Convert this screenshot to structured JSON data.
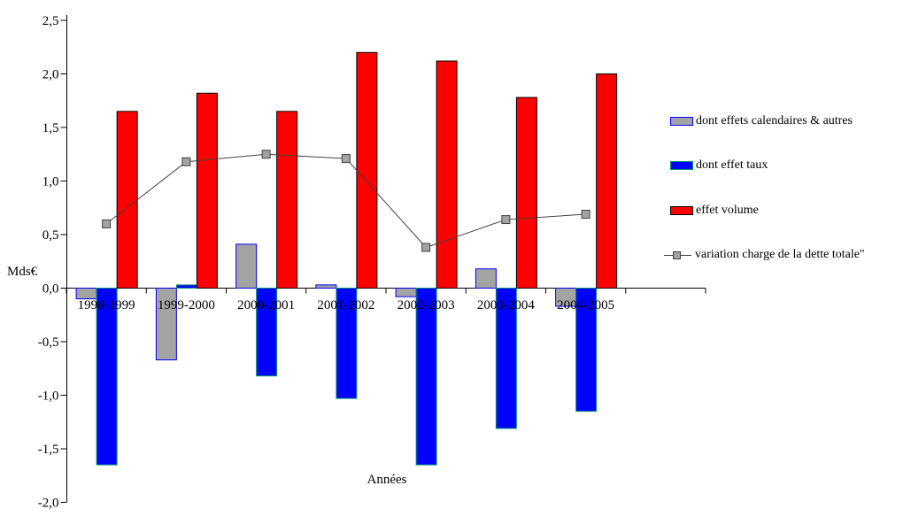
{
  "chart_data": {
    "type": "bar",
    "title": "",
    "xlabel": "Années",
    "ylabel": "Mds€",
    "ylim": [
      -2.0,
      2.5
    ],
    "ytick_step": 0.5,
    "ytick_labels": [
      "2,5",
      "2,0",
      "1,5",
      "1,0",
      "0,5",
      "0,0",
      "-0,5",
      "-1,0",
      "-1,5",
      "-2,0"
    ],
    "ytick_values": [
      2.5,
      2.0,
      1.5,
      1.0,
      0.5,
      0.0,
      -0.5,
      -1.0,
      -1.5,
      -2.0
    ],
    "grid": false,
    "legend_position": "right",
    "axis_color": "#000000",
    "categories": [
      "1998-1999",
      "1999-2000",
      "2000-2001",
      "2001-2002",
      "2002-2003",
      "2003-2004",
      "2004-2005"
    ],
    "series": [
      {
        "name": "dont effets calendaires & autres",
        "type": "bar",
        "fill": "#a3a3a3",
        "border": "#0000ff",
        "values": [
          -0.1,
          -0.67,
          0.41,
          0.03,
          -0.08,
          0.18,
          -0.17
        ]
      },
      {
        "name": "dont effet taux",
        "type": "bar",
        "fill": "#0000ff",
        "border": "#009966",
        "values": [
          -1.65,
          0.03,
          -0.82,
          -1.03,
          -1.65,
          -1.31,
          -1.15
        ]
      },
      {
        "name": "effet volume",
        "type": "bar",
        "fill": "#ff0000",
        "border": "#000000",
        "values": [
          1.65,
          1.82,
          1.65,
          2.2,
          2.12,
          1.78,
          2.0
        ]
      },
      {
        "name": "variation charge de la dette totale\"",
        "type": "line",
        "stroke": "#404040",
        "marker_fill": "#a3a3a3",
        "marker_border": "#404040",
        "values": [
          0.6,
          1.18,
          1.25,
          1.21,
          0.38,
          0.64,
          0.69
        ]
      }
    ]
  }
}
